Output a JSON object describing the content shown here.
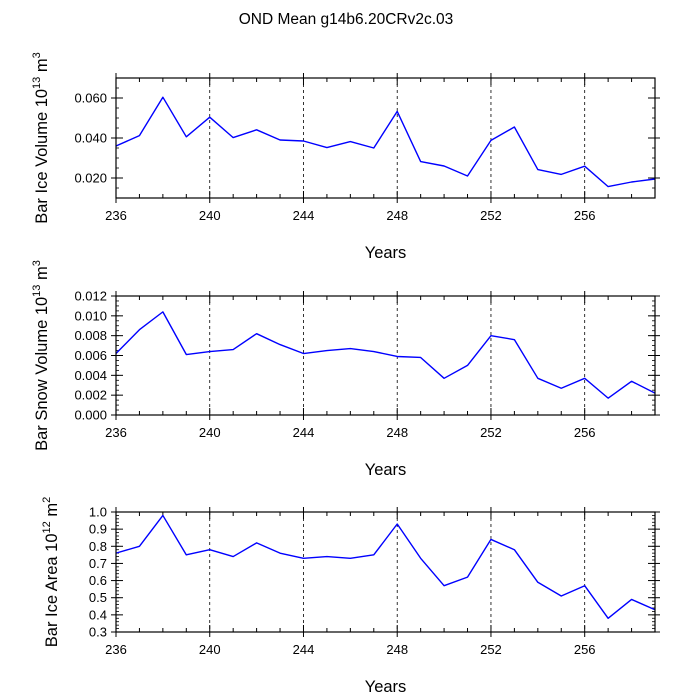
{
  "figure_title": "OND Mean g14b6.20CRv2c.03",
  "colors": {
    "line": "#0000ff",
    "axis": "#000000",
    "grid": "#000000",
    "background": "#ffffff"
  },
  "chart_data": [
    {
      "type": "line",
      "ylabel": "Bar Ice Volume 10",
      "ylabel_sup1": "13",
      "ylabel_mid": " m",
      "ylabel_sup2": "3",
      "xlabel": "Years",
      "xlim": [
        236,
        259
      ],
      "ylim": [
        0.01,
        0.07
      ],
      "xticks": [
        236,
        240,
        244,
        248,
        252,
        256
      ],
      "xtick_labels": [
        "236",
        "240",
        "244",
        "248",
        "252",
        "256"
      ],
      "yticks": [
        0.02,
        0.04,
        0.06
      ],
      "ytick_labels": [
        "0.020",
        "0.040",
        "0.060"
      ],
      "ytick_minor_step": 0.005,
      "grid_x": [
        240,
        244,
        248,
        252,
        256
      ],
      "x": [
        236,
        237,
        238,
        239,
        240,
        241,
        242,
        243,
        244,
        245,
        246,
        247,
        248,
        249,
        250,
        251,
        252,
        253,
        254,
        255,
        256,
        257,
        258,
        259
      ],
      "series": [
        {
          "name": "Bar Ice Volume",
          "values": [
            0.036,
            0.0412,
            0.0604,
            0.0406,
            0.0504,
            0.0402,
            0.0441,
            0.039,
            0.0385,
            0.0352,
            0.0382,
            0.035,
            0.0533,
            0.0282,
            0.026,
            0.021,
            0.0388,
            0.0455,
            0.0242,
            0.0218,
            0.0259,
            0.0157,
            0.018,
            0.0195
          ]
        }
      ]
    },
    {
      "type": "line",
      "ylabel": "Bar Snow Volume 10",
      "ylabel_sup1": "13",
      "ylabel_mid": " m",
      "ylabel_sup2": "3",
      "xlabel": "Years",
      "xlim": [
        236,
        259
      ],
      "ylim": [
        0.0,
        0.012
      ],
      "xticks": [
        236,
        240,
        244,
        248,
        252,
        256
      ],
      "xtick_labels": [
        "236",
        "240",
        "244",
        "248",
        "252",
        "256"
      ],
      "yticks": [
        0.0,
        0.002,
        0.004,
        0.006,
        0.008,
        0.01,
        0.012
      ],
      "ytick_labels": [
        "0.000",
        "0.002",
        "0.004",
        "0.006",
        "0.008",
        "0.010",
        "0.012"
      ],
      "ytick_minor_step": 0.0005,
      "grid_x": [
        240,
        244,
        248,
        252,
        256
      ],
      "x": [
        236,
        237,
        238,
        239,
        240,
        241,
        242,
        243,
        244,
        245,
        246,
        247,
        248,
        249,
        250,
        251,
        252,
        253,
        254,
        255,
        256,
        257,
        258,
        259
      ],
      "series": [
        {
          "name": "Bar Snow Volume",
          "values": [
            0.0062,
            0.0086,
            0.0104,
            0.0061,
            0.0064,
            0.0066,
            0.0082,
            0.0071,
            0.0062,
            0.0065,
            0.0067,
            0.0064,
            0.0059,
            0.0058,
            0.0037,
            0.005,
            0.008,
            0.0076,
            0.0037,
            0.0027,
            0.0037,
            0.0017,
            0.0034,
            0.0022
          ]
        }
      ]
    },
    {
      "type": "line",
      "ylabel": "Bar Ice Area 10",
      "ylabel_sup1": "12",
      "ylabel_mid": " m",
      "ylabel_sup2": "2",
      "xlabel": "Years",
      "xlim": [
        236,
        259
      ],
      "ylim": [
        0.3,
        1.0
      ],
      "xticks": [
        236,
        240,
        244,
        248,
        252,
        256
      ],
      "xtick_labels": [
        "236",
        "240",
        "244",
        "248",
        "252",
        "256"
      ],
      "yticks": [
        0.3,
        0.4,
        0.5,
        0.6,
        0.7,
        0.8,
        0.9,
        1.0
      ],
      "ytick_labels": [
        "0.3",
        "0.4",
        "0.5",
        "0.6",
        "0.7",
        "0.8",
        "0.9",
        "1.0"
      ],
      "ytick_minor_step": 0.02,
      "grid_x": [
        240,
        244,
        248,
        252,
        256
      ],
      "x": [
        236,
        237,
        238,
        239,
        240,
        241,
        242,
        243,
        244,
        245,
        246,
        247,
        248,
        249,
        250,
        251,
        252,
        253,
        254,
        255,
        256,
        257,
        258,
        259
      ],
      "series": [
        {
          "name": "Bar Ice Area",
          "values": [
            0.76,
            0.8,
            0.98,
            0.75,
            0.78,
            0.74,
            0.82,
            0.76,
            0.73,
            0.74,
            0.73,
            0.75,
            0.93,
            0.73,
            0.57,
            0.62,
            0.84,
            0.78,
            0.59,
            0.51,
            0.57,
            0.38,
            0.49,
            0.43
          ]
        }
      ]
    }
  ]
}
